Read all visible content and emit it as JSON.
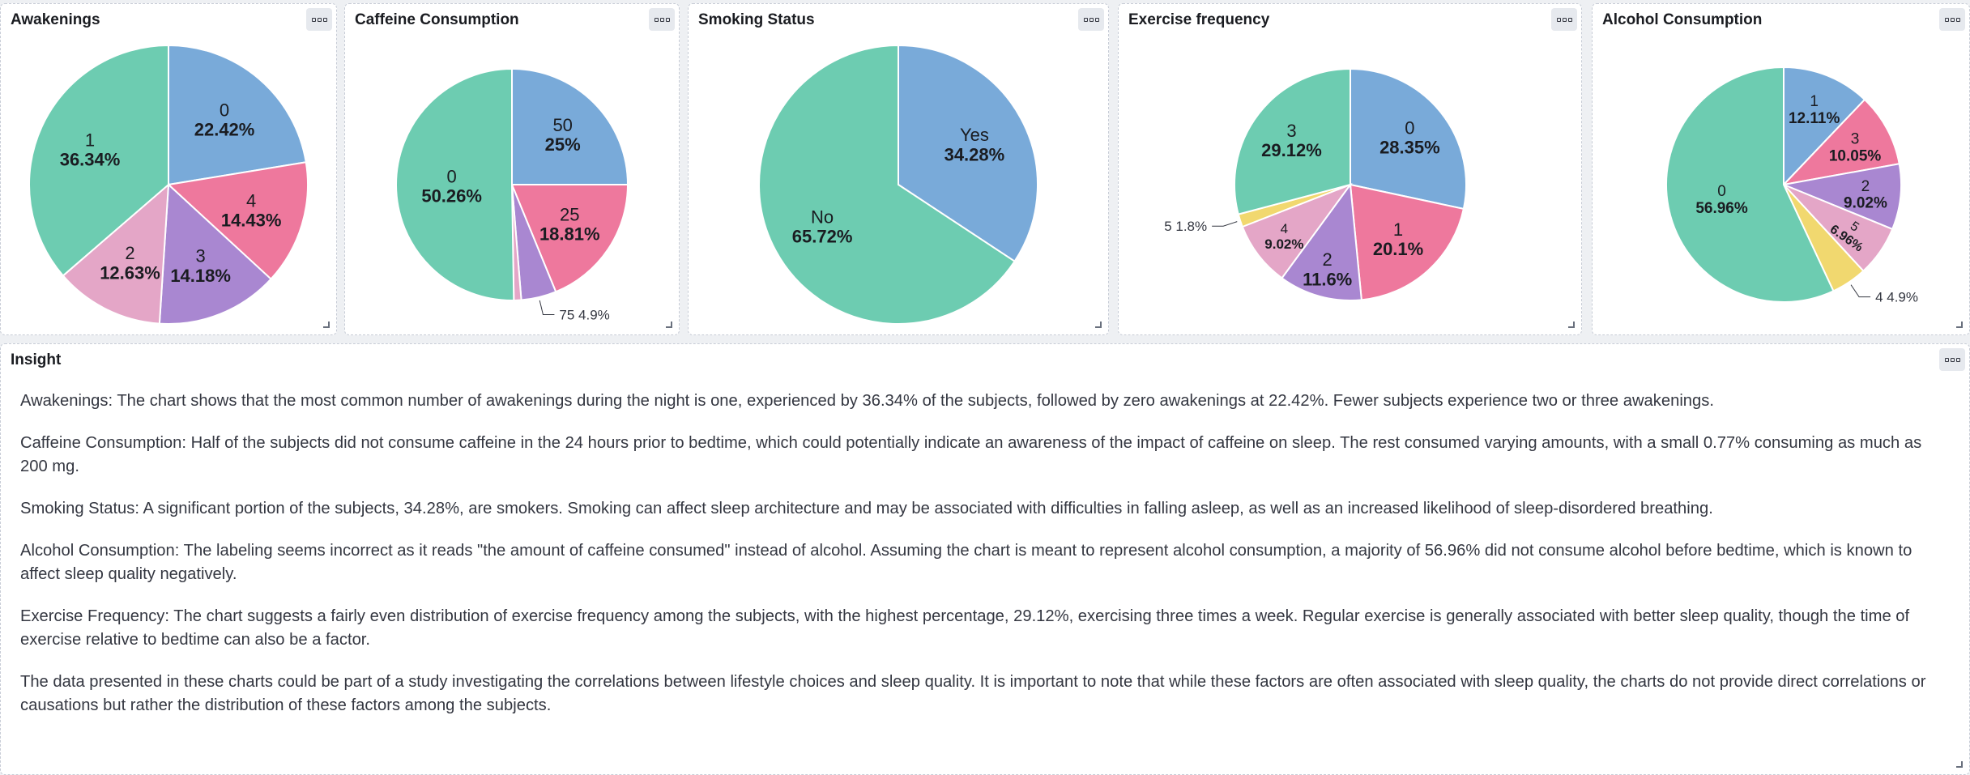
{
  "panels": [
    {
      "title": "Awakenings",
      "menu_icon": "ellipsis-icon"
    },
    {
      "title": "Caffeine Consumption",
      "menu_icon": "ellipsis-icon"
    },
    {
      "title": "Smoking Status",
      "menu_icon": "ellipsis-icon"
    },
    {
      "title": "Exercise frequency",
      "menu_icon": "ellipsis-icon"
    },
    {
      "title": "Alcohol Consumption",
      "menu_icon": "ellipsis-icon"
    }
  ],
  "insight": {
    "title": "Insight",
    "paragraphs": [
      "Awakenings: The chart shows that the most common number of awakenings during the night is one, experienced by 36.34% of the subjects, followed by zero awakenings at 22.42%. Fewer subjects experience two or three awakenings.",
      "Caffeine Consumption: Half of the subjects did not consume caffeine in the 24 hours prior to bedtime, which could potentially indicate an awareness of the impact of caffeine on sleep. The rest consumed varying amounts, with a small 0.77% consuming as much as 200 mg.",
      "Smoking Status: A significant portion of the subjects, 34.28%, are smokers. Smoking can affect sleep architecture and may be associated with difficulties in falling asleep, as well as an increased likelihood of sleep-disordered breathing.",
      "Alcohol Consumption: The labeling seems incorrect as it reads \"the amount of caffeine consumed\" instead of alcohol. Assuming the chart is meant to represent alcohol consumption, a majority of 56.96% did not consume alcohol before bedtime, which is known to affect sleep quality negatively.",
      "Exercise Frequency: The chart suggests a fairly even distribution of exercise frequency among the subjects, with the highest percentage, 29.12%, exercising three times a week. Regular exercise is generally associated with better sleep quality, though the time of exercise relative to bedtime can also be a factor.",
      "The data presented in these charts could be part of a study investigating the correlations between lifestyle choices and sleep quality. It is important to note that while these factors are often associated with sleep quality, the charts do not provide direct correlations or causations but rather the distribution of these factors among the subjects."
    ]
  },
  "chart_data": [
    {
      "type": "pie",
      "title": "Awakenings",
      "slices": [
        {
          "label": "0",
          "value": 22.42,
          "pct": "22.42%",
          "color": "#79aad9"
        },
        {
          "label": "4",
          "value": 14.43,
          "pct": "14.43%",
          "color": "#ee789d"
        },
        {
          "label": "3",
          "value": 14.18,
          "pct": "14.18%",
          "color": "#a987d1"
        },
        {
          "label": "2",
          "value": 12.63,
          "pct": "12.63%",
          "color": "#e4a6c7"
        },
        {
          "label": "1",
          "value": 36.34,
          "pct": "36.34%",
          "color": "#6dccb1"
        }
      ]
    },
    {
      "type": "pie",
      "title": "Caffeine Consumption",
      "slices": [
        {
          "label": "50",
          "value": 25,
          "pct": "25%",
          "color": "#79aad9"
        },
        {
          "label": "25",
          "value": 18.81,
          "pct": "18.81%",
          "color": "#ee789d"
        },
        {
          "label": "75",
          "value": 4.9,
          "pct": "4.9%",
          "color": "#a987d1"
        },
        {
          "label": "",
          "value": 1.03,
          "pct": "",
          "color": "#e4a6c7"
        },
        {
          "label": "0",
          "value": 50.26,
          "pct": "50.26%",
          "color": "#6dccb1"
        }
      ]
    },
    {
      "type": "pie",
      "title": "Smoking Status",
      "slices": [
        {
          "label": "Yes",
          "value": 34.28,
          "pct": "34.28%",
          "color": "#79aad9"
        },
        {
          "label": "No",
          "value": 65.72,
          "pct": "65.72%",
          "color": "#6dccb1"
        }
      ]
    },
    {
      "type": "pie",
      "title": "Exercise frequency",
      "slices": [
        {
          "label": "0",
          "value": 28.35,
          "pct": "28.35%",
          "color": "#79aad9"
        },
        {
          "label": "1",
          "value": 20.1,
          "pct": "20.1%",
          "color": "#ee789d"
        },
        {
          "label": "2",
          "value": 11.6,
          "pct": "11.6%",
          "color": "#a987d1"
        },
        {
          "label": "4",
          "value": 9.02,
          "pct": "9.02%",
          "color": "#e4a6c7"
        },
        {
          "label": "5",
          "value": 1.8,
          "pct": "1.8%",
          "color": "#f1d86f"
        },
        {
          "label": "3",
          "value": 29.12,
          "pct": "29.12%",
          "color": "#6dccb1"
        }
      ]
    },
    {
      "type": "pie",
      "title": "Alcohol Consumption",
      "slices": [
        {
          "label": "1",
          "value": 12.11,
          "pct": "12.11%",
          "color": "#79aad9"
        },
        {
          "label": "3",
          "value": 10.05,
          "pct": "10.05%",
          "color": "#ee789d"
        },
        {
          "label": "2",
          "value": 9.02,
          "pct": "9.02%",
          "color": "#a987d1"
        },
        {
          "label": "5",
          "value": 6.96,
          "pct": "6.96%",
          "color": "#e4a6c7"
        },
        {
          "label": "4",
          "value": 4.9,
          "pct": "4.9%",
          "color": "#f1d86f"
        },
        {
          "label": "0",
          "value": 56.96,
          "pct": "56.96%",
          "color": "#6dccb1"
        }
      ]
    }
  ]
}
